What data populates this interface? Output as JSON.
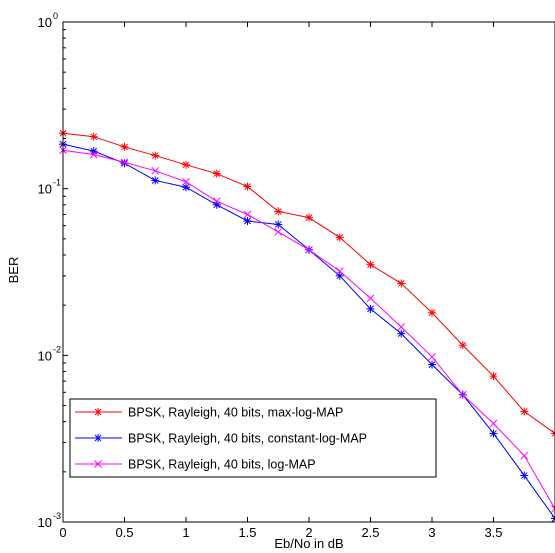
{
  "chart_data": {
    "type": "line",
    "title": "",
    "xlabel": "Eb/No in dB",
    "ylabel": "BER",
    "xlim": [
      0,
      4
    ],
    "ylim": [
      0.001,
      1
    ],
    "yscale": "log",
    "grid": false,
    "legend_position": "bottom-left",
    "x_ticks": [
      "0",
      "0.5",
      "1",
      "1.5",
      "2",
      "2.5",
      "3",
      "3.5"
    ],
    "y_ticks": [
      {
        "base": "10",
        "exp": "0"
      },
      {
        "base": "10",
        "exp": "-1"
      },
      {
        "base": "10",
        "exp": "-2"
      },
      {
        "base": "10",
        "exp": "-3"
      }
    ],
    "x": [
      0,
      0.25,
      0.5,
      0.75,
      1,
      1.25,
      1.5,
      1.75,
      2,
      2.25,
      2.5,
      2.75,
      3,
      3.25,
      3.5,
      3.75,
      4
    ],
    "series": [
      {
        "name": "BPSK, Rayleigh, 40 bits, max-log-MAP",
        "color": "#ff0000",
        "marker": "star",
        "values": [
          0.215,
          0.205,
          0.178,
          0.158,
          0.139,
          0.123,
          0.103,
          0.073,
          0.067,
          0.051,
          0.035,
          0.027,
          0.018,
          0.0115,
          0.0075,
          0.0046,
          0.0034
        ]
      },
      {
        "name": "BPSK, Rayleigh, 40 bits, constant-log-MAP",
        "color": "#0000ff",
        "marker": "star",
        "values": [
          0.185,
          0.168,
          0.142,
          0.112,
          0.102,
          0.08,
          0.064,
          0.061,
          0.043,
          0.03,
          0.019,
          0.0135,
          0.0088,
          0.0058,
          0.0034,
          0.0019,
          0.00105
        ]
      },
      {
        "name": "BPSK, Rayleigh, 40 bits, log-MAP",
        "color": "#ff00ff",
        "marker": "x",
        "values": [
          0.17,
          0.16,
          0.144,
          0.128,
          0.11,
          0.084,
          0.07,
          0.055,
          0.043,
          0.032,
          0.022,
          0.0148,
          0.0098,
          0.0058,
          0.0039,
          0.0025,
          0.0012
        ]
      }
    ]
  }
}
